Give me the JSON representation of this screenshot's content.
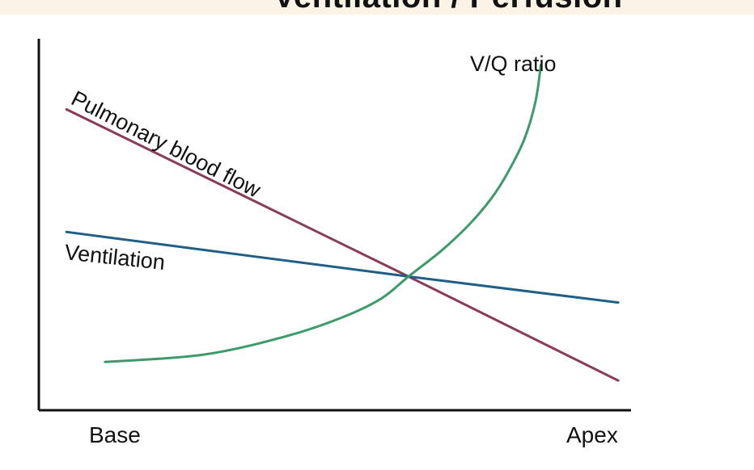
{
  "chart_data": {
    "type": "line",
    "title": "Ventilation / Perfusion",
    "xlabel": "",
    "ylabel": "",
    "x_tick_labels": [
      "Base",
      "Apex"
    ],
    "xlim": [
      0,
      1
    ],
    "ylim": [
      0,
      1
    ],
    "grid": false,
    "series": [
      {
        "name": "Pulmonary blood flow",
        "label_text": "Pulmonary blood flow",
        "color": "#8a3a5a",
        "x": [
          0.05,
          0.67,
          1.05
        ],
        "y": [
          0.81,
          0.36,
          0.08
        ]
      },
      {
        "name": "Ventilation",
        "label_text": "Ventilation",
        "color": "#1f5f85",
        "x": [
          0.05,
          0.67,
          1.05
        ],
        "y": [
          0.48,
          0.36,
          0.29
        ]
      },
      {
        "name": "V/Q ratio",
        "label_text": "V/Q ratio",
        "color": "#3d9a6a",
        "x": [
          0.12,
          0.3,
          0.45,
          0.55,
          0.62,
          0.67,
          0.73,
          0.78,
          0.82,
          0.85,
          0.88,
          0.9,
          0.91
        ],
        "y": [
          0.13,
          0.15,
          0.2,
          0.25,
          0.3,
          0.36,
          0.43,
          0.5,
          0.57,
          0.64,
          0.73,
          0.83,
          0.93
        ]
      }
    ]
  }
}
